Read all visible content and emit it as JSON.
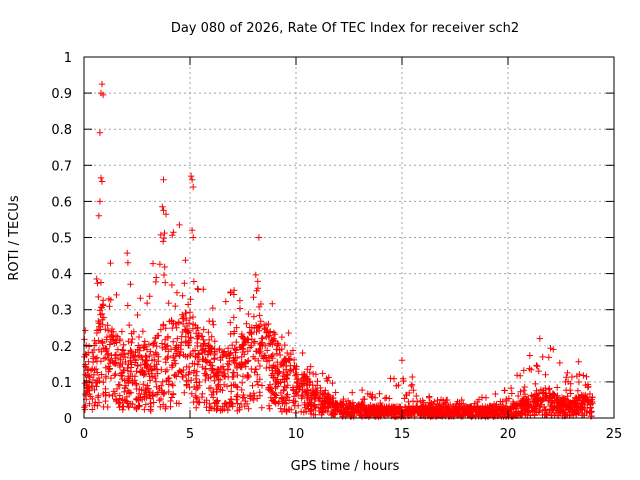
{
  "chart_data": {
    "type": "scatter",
    "title": "Day 080 of 2026, Rate Of TEC Index for receiver sch2",
    "xlabel": "GPS time / hours",
    "ylabel": "ROTI / TECUs",
    "xlim": [
      0,
      25
    ],
    "ylim": [
      0,
      1
    ],
    "grid": true,
    "marker": "+",
    "marker_color": "#ff0000",
    "x_ticks": [
      0,
      5,
      10,
      15,
      20,
      25
    ],
    "x_tick_labels": [
      "0",
      "5",
      "10",
      "15",
      "20",
      "25"
    ],
    "y_ticks": [
      0,
      0.1,
      0.2,
      0.3,
      0.4,
      0.5,
      0.6,
      0.7,
      0.8,
      0.9,
      1
    ],
    "y_tick_labels": [
      "0",
      "0.1",
      "0.2",
      "0.3",
      "0.4",
      "0.5",
      "0.6",
      "0.7",
      "0.8",
      "0.9",
      "1"
    ],
    "envelope": {
      "description_hours_to_typical_and_peak_ROTI": true,
      "hours": [
        0.0,
        0.5,
        0.9,
        1.2,
        2.0,
        3.0,
        3.8,
        4.5,
        5.0,
        5.3,
        6.0,
        7.0,
        7.8,
        8.3,
        9.0,
        10.0,
        11.0,
        12.0,
        13.0,
        14.0,
        15.0,
        16.0,
        17.0,
        18.0,
        19.0,
        20.0,
        20.5,
        21.0,
        21.6,
        22.2,
        23.0,
        23.5,
        24.0
      ],
      "typical": [
        0.12,
        0.14,
        0.2,
        0.16,
        0.13,
        0.12,
        0.16,
        0.17,
        0.2,
        0.16,
        0.12,
        0.11,
        0.17,
        0.18,
        0.13,
        0.09,
        0.05,
        0.03,
        0.02,
        0.02,
        0.02,
        0.02,
        0.02,
        0.02,
        0.02,
        0.02,
        0.03,
        0.04,
        0.05,
        0.04,
        0.03,
        0.04,
        0.03
      ],
      "peak": [
        0.36,
        0.33,
        0.92,
        0.45,
        0.47,
        0.33,
        0.66,
        0.54,
        0.67,
        0.43,
        0.3,
        0.36,
        0.38,
        0.5,
        0.3,
        0.22,
        0.14,
        0.1,
        0.08,
        0.07,
        0.16,
        0.07,
        0.05,
        0.05,
        0.06,
        0.08,
        0.13,
        0.18,
        0.22,
        0.2,
        0.12,
        0.19,
        0.07
      ]
    },
    "notable_points": [
      {
        "x": 0.85,
        "y": 0.925
      },
      {
        "x": 0.8,
        "y": 0.9
      },
      {
        "x": 0.9,
        "y": 0.895
      },
      {
        "x": 0.75,
        "y": 0.79
      },
      {
        "x": 0.8,
        "y": 0.665
      },
      {
        "x": 0.85,
        "y": 0.655
      },
      {
        "x": 0.75,
        "y": 0.6
      },
      {
        "x": 0.7,
        "y": 0.56
      },
      {
        "x": 3.75,
        "y": 0.66
      },
      {
        "x": 3.7,
        "y": 0.585
      },
      {
        "x": 3.75,
        "y": 0.575
      },
      {
        "x": 4.5,
        "y": 0.535
      },
      {
        "x": 5.05,
        "y": 0.67
      },
      {
        "x": 5.1,
        "y": 0.66
      },
      {
        "x": 5.15,
        "y": 0.64
      },
      {
        "x": 5.1,
        "y": 0.52
      },
      {
        "x": 5.15,
        "y": 0.5
      },
      {
        "x": 8.25,
        "y": 0.5
      },
      {
        "x": 15.0,
        "y": 0.16
      },
      {
        "x": 21.5,
        "y": 0.22
      }
    ]
  }
}
